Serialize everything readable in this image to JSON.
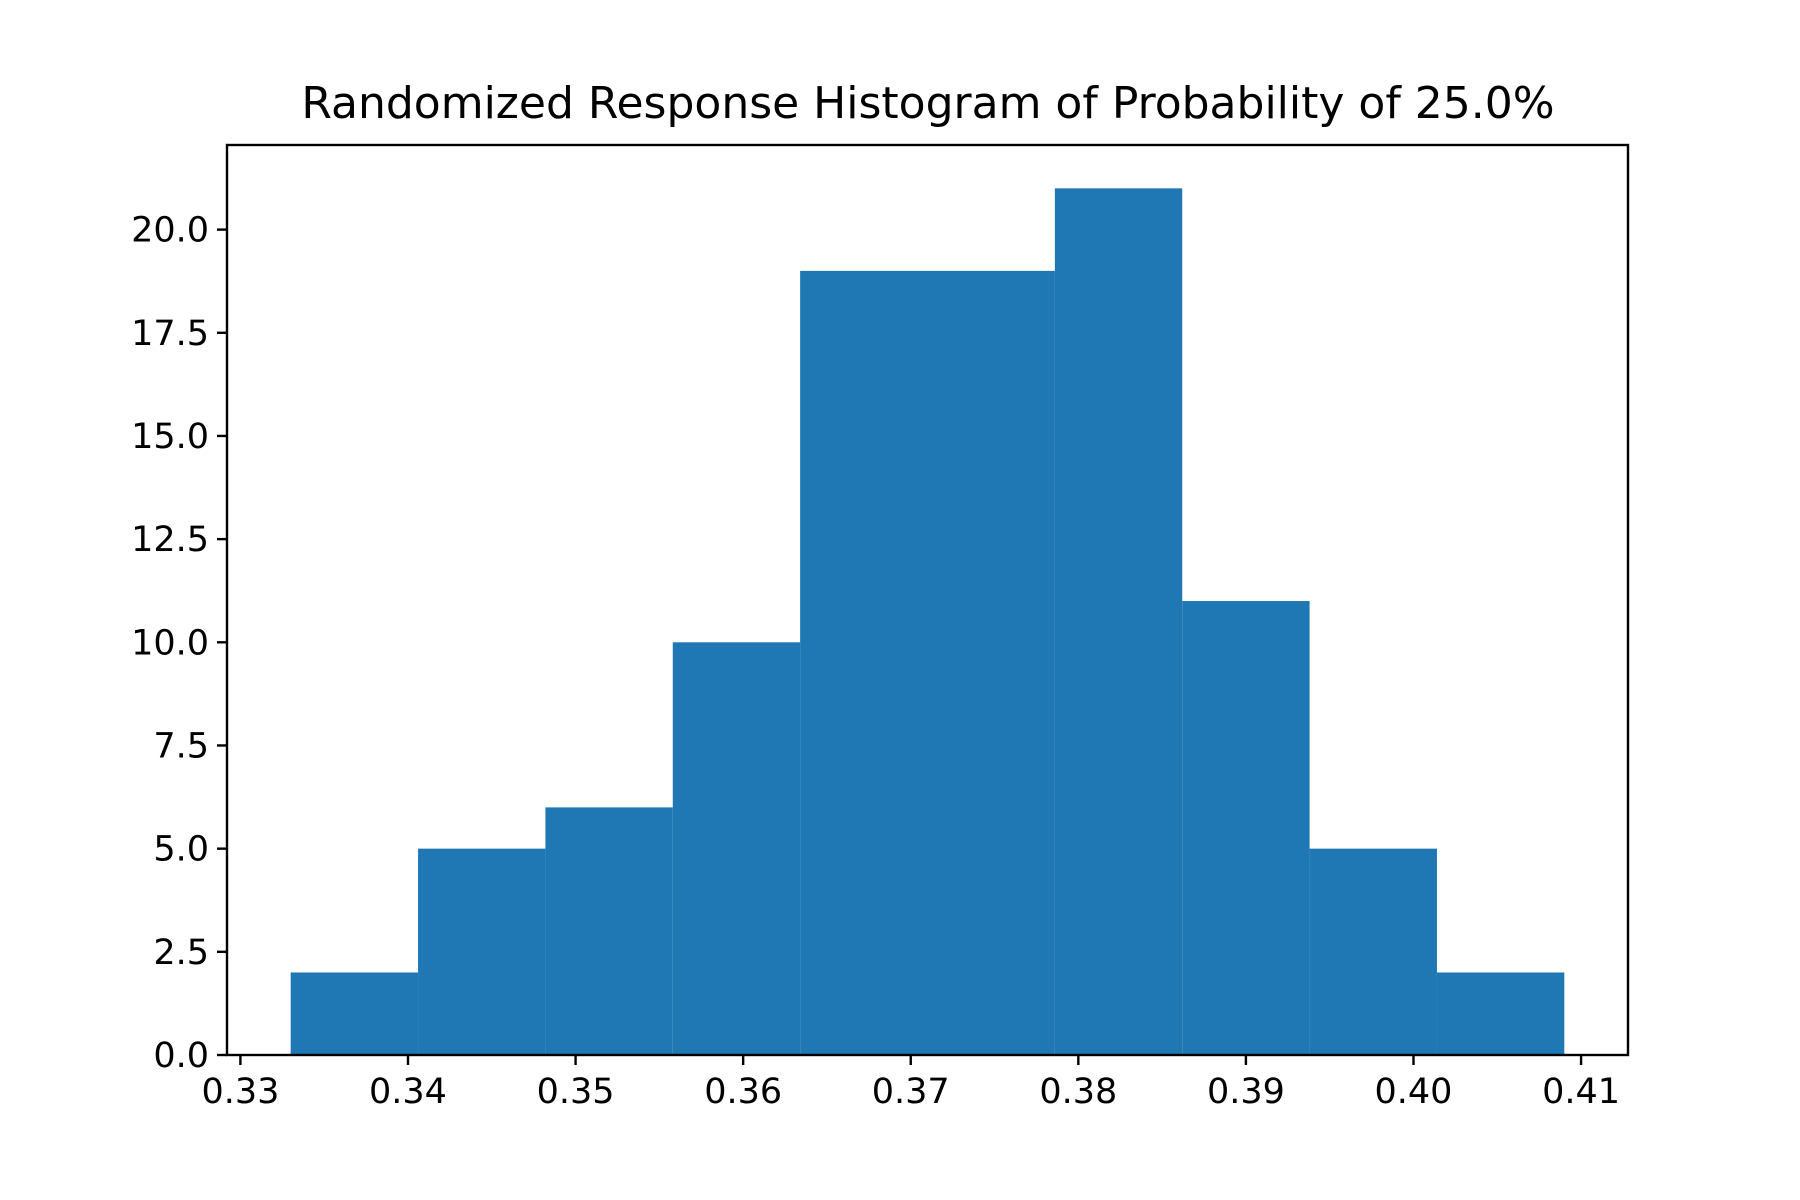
{
  "chart_data": {
    "type": "bar",
    "title": "Randomized Response Histogram of Probability of 25.0%",
    "xlabel": "",
    "ylabel": "",
    "bin_edges": [
      0.333,
      0.3406,
      0.3482,
      0.3558,
      0.3634,
      0.371,
      0.3786,
      0.3862,
      0.3938,
      0.4014,
      0.409
    ],
    "values": [
      2,
      5,
      6,
      10,
      19,
      19,
      21,
      11,
      5,
      2
    ],
    "xlim": [
      0.3292,
      0.4128
    ],
    "ylim": [
      0,
      22.05
    ],
    "x_ticks": [
      0.33,
      0.34,
      0.35,
      0.36,
      0.37,
      0.38,
      0.39,
      0.4,
      0.41
    ],
    "x_tick_labels": [
      "0.33",
      "0.34",
      "0.35",
      "0.36",
      "0.37",
      "0.38",
      "0.39",
      "0.40",
      "0.41"
    ],
    "y_ticks": [
      0,
      2.5,
      5,
      7.5,
      10,
      12.5,
      15,
      17.5,
      20
    ],
    "y_tick_labels": [
      "0.0",
      "2.5",
      "5.0",
      "7.5",
      "10.0",
      "12.5",
      "15.0",
      "17.5",
      "20.0"
    ],
    "bar_color": "#1f77b4",
    "grid": false,
    "legend": "none"
  }
}
